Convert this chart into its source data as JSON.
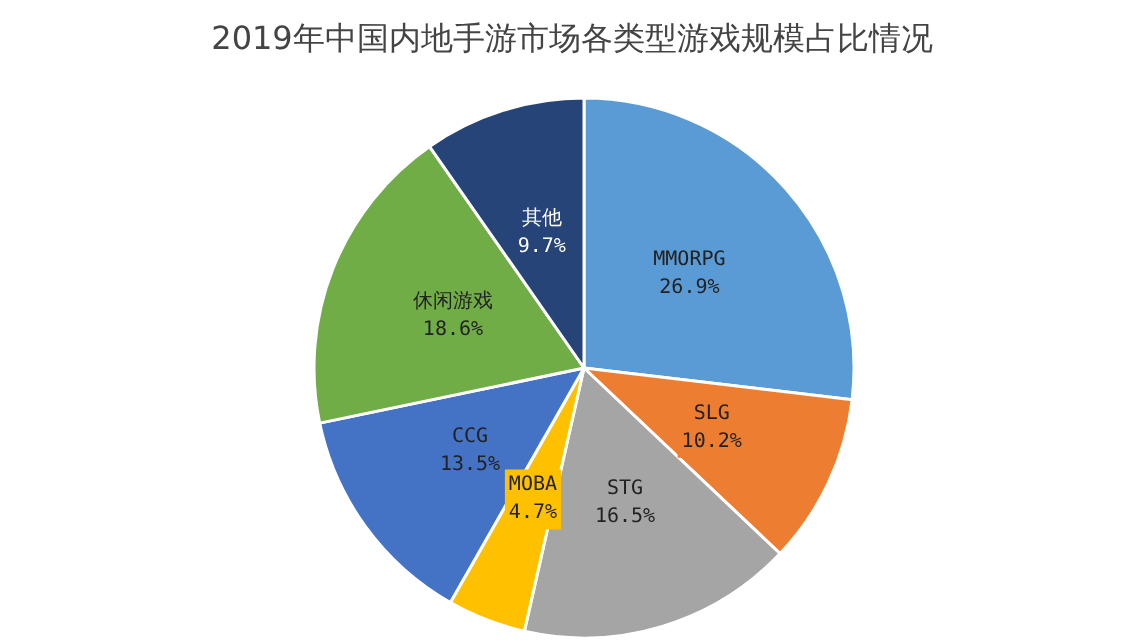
{
  "chart_data": {
    "type": "pie",
    "title": "2019年中国内地手游市场各类型游戏规模占比情况",
    "categories": [
      "MMORPG",
      "SLG",
      "STG",
      "MOBA",
      "CCG",
      "休闲游戏",
      "其他"
    ],
    "values": [
      26.9,
      10.2,
      16.5,
      4.7,
      13.5,
      18.6,
      9.7
    ],
    "value_labels": [
      "26.9%",
      "10.2%",
      "16.5%",
      "4.7%",
      "13.5%",
      "18.6%",
      "9.7%"
    ],
    "colors": [
      "#5b9bd5",
      "#ed7d31",
      "#a5a5a5",
      "#ffc000",
      "#4472c4",
      "#70ad47",
      "#264478"
    ],
    "legend": false
  }
}
